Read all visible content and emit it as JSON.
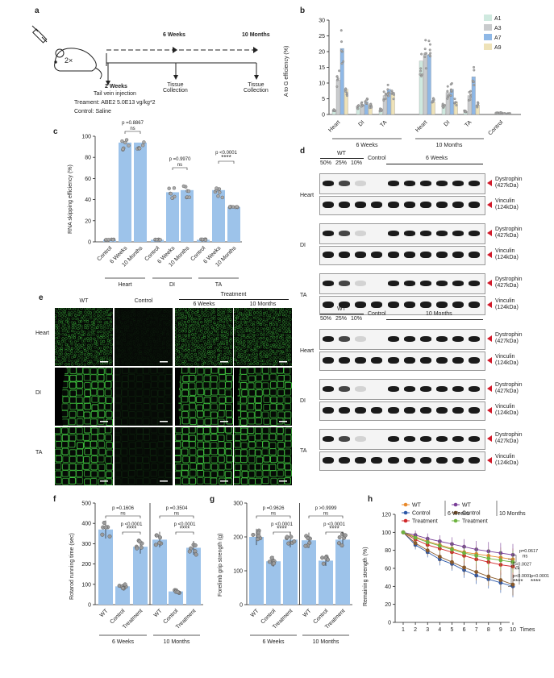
{
  "panel_a": {
    "letter": "a",
    "timeline": {
      "t1": "6 Weeks",
      "t2": "10 Months",
      "start": "2 Weeks"
    },
    "injection": "Tail vein injection",
    "treatment": "Treament: ABE2   5.0E13 vg/kg*2",
    "control": "Control: Saline",
    "collection1": [
      "Tissue",
      "Collection"
    ],
    "collection2": [
      "Tissue",
      "Collection"
    ],
    "mouse_label": "2×"
  },
  "panel_b": {
    "letter": "b",
    "chart_data": {
      "type": "bar",
      "ylabel": "A to G efficiency (%)",
      "ylim": [
        0,
        30
      ],
      "yticks": [
        0,
        5,
        10,
        15,
        20,
        25,
        30
      ],
      "categories": [
        "Heart",
        "DI",
        "TA",
        "Heart",
        "DI",
        "TA",
        "Control"
      ],
      "groups": [
        "6 Weeks",
        "10 Months"
      ],
      "series": [
        {
          "name": "A1",
          "color": "#cfe9df",
          "values": [
            1.5,
            2.5,
            1.5,
            17,
            3,
            1,
            0.5
          ]
        },
        {
          "name": "A3",
          "color": "#c9cbcd",
          "values": [
            11,
            3,
            6,
            19,
            7,
            6,
            0.5
          ]
        },
        {
          "name": "A7",
          "color": "#8fb8e6",
          "values": [
            21,
            4,
            8,
            19,
            8,
            12,
            0.3
          ]
        },
        {
          "name": "A9",
          "color": "#eee2b8",
          "values": [
            8,
            3,
            7,
            4,
            4,
            3,
            0.3
          ]
        }
      ]
    }
  },
  "panel_c": {
    "letter": "c",
    "chart_data": {
      "type": "bar",
      "ylabel": "RNA skipping efficiency (%)",
      "ylim": [
        0,
        100
      ],
      "yticks": [
        0,
        20,
        40,
        60,
        80,
        100
      ],
      "categories": [
        "Control",
        "6 Weeks",
        "10 Months",
        "Control",
        "6 Weeks",
        "10 Months",
        "Control",
        "6 Weeks",
        "10 Months"
      ],
      "values": [
        2,
        94,
        94,
        2,
        47,
        49,
        2,
        49,
        33
      ],
      "groups": [
        "Heart",
        "DI",
        "TA"
      ],
      "annotations": [
        {
          "p": "p =0.8867",
          "sig": "ns"
        },
        {
          "p": "p =0.9970",
          "sig": "ns"
        },
        {
          "p": "p <0.0001",
          "sig": "****"
        }
      ]
    }
  },
  "panel_d": {
    "letter": "d",
    "top_header": {
      "wt": "WT",
      "pct": [
        "50%",
        "25%",
        "10%"
      ],
      "control": "Control",
      "group": "6 Weeks"
    },
    "bottom_header": {
      "wt": "WT",
      "pct": [
        "50%",
        "25%",
        "10%"
      ],
      "control": "Control",
      "group": "10 Months"
    },
    "tissues": [
      "Heart",
      "DI",
      "TA"
    ],
    "dystrophin": [
      "Dystrophin",
      "(427kDa)"
    ],
    "vinculin": [
      "Vinculin",
      "(124kDa)"
    ]
  },
  "panel_e": {
    "letter": "e",
    "columns": [
      "WT",
      "Control",
      "6 Weeks",
      "10 Months"
    ],
    "treatment": "Treatment",
    "rows": [
      "Heart",
      "DI",
      "TA"
    ]
  },
  "panel_f": {
    "letter": "f",
    "chart_data": {
      "type": "bar",
      "ylabel": "Rotarod running time (sec)",
      "ylim": [
        0,
        500
      ],
      "yticks": [
        0,
        100,
        200,
        300,
        400,
        500
      ],
      "categories": [
        "WT",
        "Control",
        "Treatment",
        "WT",
        "Control",
        "Treatment"
      ],
      "values": [
        370,
        90,
        285,
        320,
        65,
        280
      ],
      "groups": [
        "6 Weeks",
        "10 Months"
      ],
      "annotations": [
        {
          "p": "p =0.1606",
          "sig": "ns"
        },
        {
          "p": "p <0.0001",
          "sig": "****"
        },
        {
          "p": "p =0.3504",
          "sig": "ns"
        },
        {
          "p": "p <0.0001",
          "sig": "****"
        }
      ]
    }
  },
  "panel_g": {
    "letter": "g",
    "chart_data": {
      "type": "bar",
      "ylabel": "Forelimb grip strength (g)",
      "ylim": [
        0,
        300
      ],
      "yticks": [
        0,
        100,
        200,
        300
      ],
      "categories": [
        "WT",
        "Control",
        "Treatment",
        "WT",
        "Control",
        "Treatment"
      ],
      "values": [
        200,
        128,
        192,
        190,
        130,
        192
      ],
      "groups": [
        "6 Weeks",
        "10 Months"
      ],
      "annotations": [
        {
          "p": "p =0.9626",
          "sig": "ns"
        },
        {
          "p": "p <0.0001",
          "sig": "****"
        },
        {
          "p": "p >0.9999",
          "sig": "ns"
        },
        {
          "p": "p <0.0001",
          "sig": "****"
        }
      ]
    }
  },
  "panel_h": {
    "letter": "h",
    "chart_data": {
      "type": "line",
      "ylabel": "Remaining strength (%)",
      "xlabel": "Times",
      "ylim": [
        0,
        120
      ],
      "yticks": [
        0,
        20,
        40,
        60,
        80,
        100,
        120
      ],
      "x": [
        1,
        2,
        3,
        4,
        5,
        6,
        7,
        8,
        9,
        10
      ],
      "series": [
        {
          "name": "WT",
          "group": "6 Weeks",
          "color": "#e8892b",
          "values": [
            100,
            95,
            90,
            86,
            82,
            78,
            76,
            74,
            72,
            70
          ]
        },
        {
          "name": "Control",
          "group": "6 Weeks",
          "color": "#2c58a8",
          "values": [
            100,
            86,
            78,
            70,
            65,
            58,
            52,
            48,
            44,
            40
          ]
        },
        {
          "name": "Treatment",
          "group": "6 Weeks",
          "color": "#d0282a",
          "values": [
            100,
            92,
            86,
            82,
            78,
            74,
            70,
            67,
            64,
            62
          ]
        },
        {
          "name": "WT",
          "group": "10 Months",
          "color": "#7a3f98",
          "values": [
            100,
            97,
            93,
            90,
            87,
            84,
            81,
            79,
            77,
            75
          ]
        },
        {
          "name": "Control",
          "group": "10 Months",
          "color": "#8a5a2a",
          "values": [
            100,
            88,
            80,
            73,
            67,
            61,
            56,
            51,
            47,
            42
          ]
        },
        {
          "name": "Treatment",
          "group": "10 Months",
          "color": "#6db33f",
          "values": [
            100,
            94,
            89,
            85,
            81,
            77,
            74,
            71,
            69,
            67
          ]
        }
      ],
      "legend_groups": [
        "6 Weeks",
        "10 Months"
      ],
      "annotations": [
        {
          "p": "p=0.0617",
          "sig": "ns"
        },
        {
          "p": "p=0.0027",
          "sig": "**"
        },
        {
          "p": "p<0.0001",
          "sig": "****"
        },
        {
          "p": "p<0.0001",
          "sig": "****"
        }
      ]
    }
  }
}
